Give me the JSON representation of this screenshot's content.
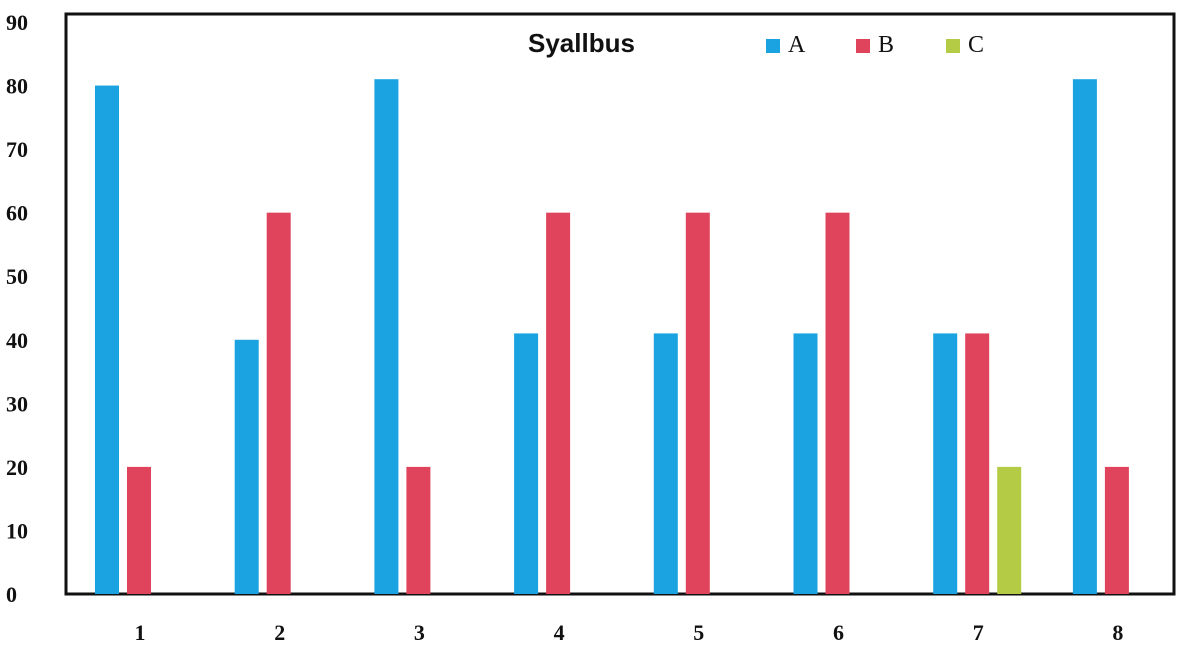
{
  "chart_data": {
    "type": "bar",
    "title": "Syallbus",
    "xlabel": "",
    "ylabel": "",
    "categories": [
      "1",
      "2",
      "3",
      "4",
      "5",
      "6",
      "7",
      "8"
    ],
    "ylim": [
      0,
      90
    ],
    "yticks": [
      "0",
      "10",
      "20",
      "30",
      "40",
      "50",
      "60",
      "70",
      "80",
      "90"
    ],
    "grid": false,
    "legend_position": "top-right",
    "series": [
      {
        "name": "A",
        "color": "#1aa3e0",
        "values": [
          80,
          40,
          81,
          41,
          41,
          41,
          41,
          81
        ]
      },
      {
        "name": "B",
        "color": "#e0445c",
        "values": [
          20,
          60,
          20,
          60,
          60,
          60,
          41,
          20
        ]
      },
      {
        "name": "C",
        "color": "#b4cc45",
        "values": [
          null,
          null,
          null,
          null,
          null,
          null,
          20,
          null
        ]
      }
    ]
  }
}
